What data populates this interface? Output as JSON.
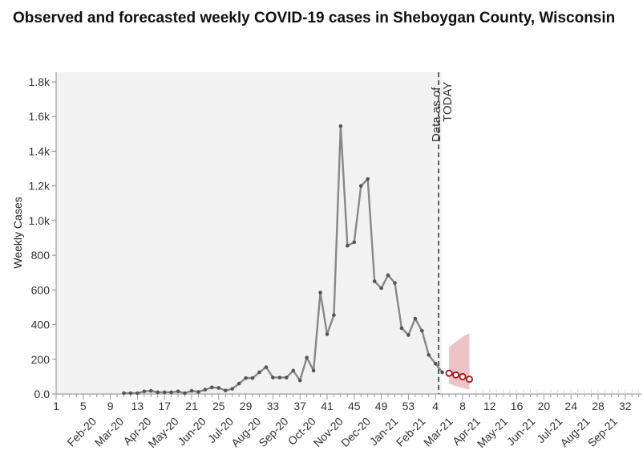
{
  "title": "Observed and forecasted weekly COVID-19 cases in Sheboygan County, Wisconsin",
  "chart_data": {
    "type": "line",
    "title": "Observed and forecasted weekly COVID-19 cases in Sheboygan County, Wisconsin",
    "ylabel": "Weekly Cases",
    "xlabel": "",
    "ylim": [
      0,
      1850
    ],
    "y_ticks": [
      "0.0",
      "200",
      "400",
      "600",
      "800",
      "1.0k",
      "1.2k",
      "1.4k",
      "1.6k",
      "1.8k"
    ],
    "y_tick_values": [
      0,
      200,
      400,
      600,
      800,
      1000,
      1200,
      1400,
      1600,
      1800
    ],
    "x_week_ticks": [
      "1",
      "5",
      "9",
      "13",
      "17",
      "21",
      "25",
      "29",
      "33",
      "37",
      "41",
      "45",
      "49",
      "53",
      "4",
      "8",
      "12",
      "16",
      "20",
      "24",
      "28",
      "32"
    ],
    "x_month_labels": [
      "Feb-20",
      "Mar-20",
      "Apr-20",
      "May-20",
      "Jun-20",
      "Jul-20",
      "Aug-20",
      "Sep-20",
      "Oct-20",
      "Nov-20",
      "Dec-20",
      "Jan-21",
      "Feb-21",
      "Mar-21",
      "Apr-21",
      "May-21",
      "Jun-21",
      "Jul-21",
      "Aug-21",
      "Sep-21"
    ],
    "today_label_line1": "Data as of",
    "today_label_line2": "TODAY",
    "observed": {
      "color": "#888888",
      "point_color": "#555555",
      "weeks": [
        "11",
        "12",
        "13",
        "14",
        "15",
        "16",
        "17",
        "18",
        "19",
        "20",
        "21",
        "22",
        "23",
        "24",
        "25",
        "26",
        "27",
        "28",
        "29",
        "30",
        "31",
        "32",
        "33",
        "34",
        "35",
        "36",
        "37",
        "38",
        "39",
        "40",
        "41",
        "42",
        "43",
        "44",
        "45",
        "46",
        "47",
        "48",
        "49",
        "50",
        "51",
        "52",
        "53",
        "1",
        "2",
        "3",
        "4",
        "5"
      ],
      "values": [
        5,
        5,
        5,
        15,
        18,
        10,
        10,
        10,
        15,
        5,
        18,
        12,
        25,
        38,
        35,
        20,
        30,
        60,
        92,
        92,
        125,
        155,
        95,
        95,
        95,
        135,
        78,
        210,
        135,
        585,
        345,
        455,
        1545,
        855,
        875,
        1200,
        1240,
        650,
        610,
        685,
        640,
        380,
        340,
        435,
        365,
        225,
        175,
        125
      ]
    },
    "forecast": {
      "color": "#aa1111",
      "band_color": "#e8b4b8",
      "weeks": [
        "6",
        "7",
        "8",
        "9"
      ],
      "values": [
        120,
        110,
        100,
        85
      ],
      "lower": [
        60,
        45,
        35,
        25
      ],
      "upper": [
        270,
        300,
        330,
        350
      ]
    },
    "shaded_region": "observed period",
    "grid": false
  }
}
